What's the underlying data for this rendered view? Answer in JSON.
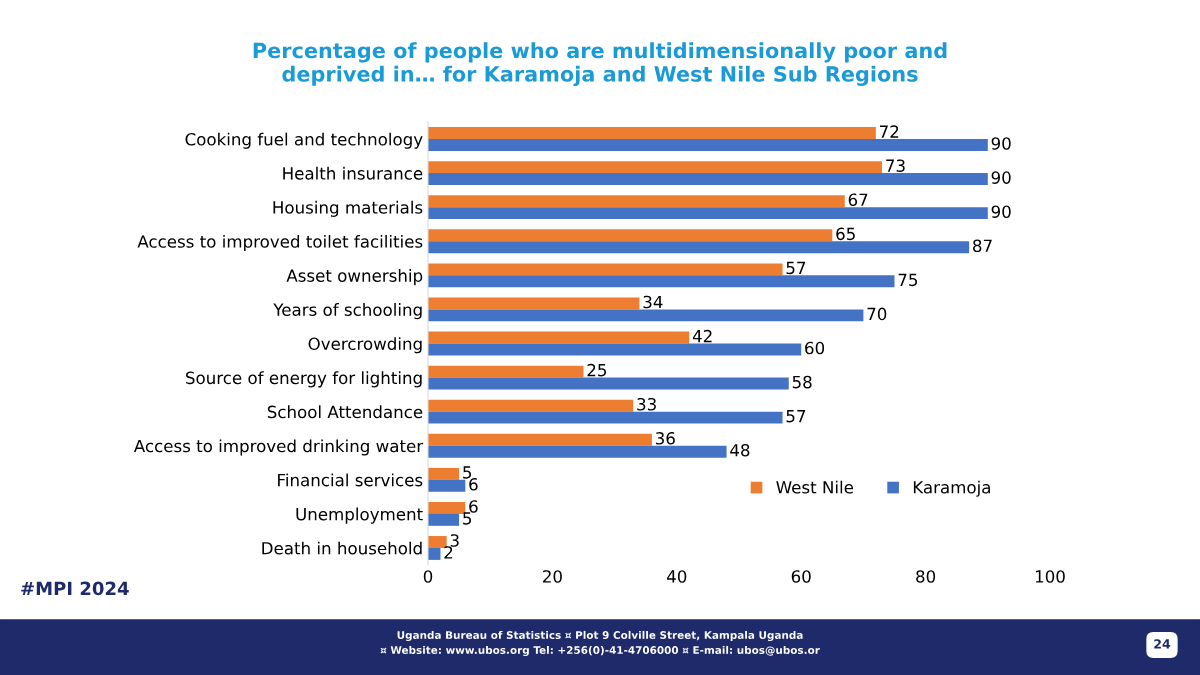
{
  "chart_data": {
    "type": "bar",
    "orientation": "horizontal",
    "title": "Percentage of people who are multidimensionally poor and\ndeprived in… for Karamoja and West Nile Sub Regions",
    "categories": [
      "Cooking fuel and technology",
      "Health insurance",
      "Housing materials",
      "Access to improved toilet facilities",
      "Asset ownership",
      "Years of schooling",
      "Overcrowding",
      "Source of energy for lighting",
      "School Attendance",
      "Access to improved drinking water",
      "Financial services",
      "Unemployment",
      "Death in household"
    ],
    "series": [
      {
        "name": "West Nile",
        "color": "#ed7d31",
        "values": [
          72,
          73,
          67,
          65,
          57,
          34,
          42,
          25,
          33,
          36,
          5,
          6,
          3
        ]
      },
      {
        "name": "Karamoja",
        "color": "#4472c4",
        "values": [
          90,
          90,
          90,
          87,
          75,
          70,
          60,
          58,
          57,
          48,
          6,
          5,
          2
        ]
      }
    ],
    "xlim": [
      0,
      100
    ],
    "xticks": [
      0,
      20,
      40,
      60,
      80,
      100
    ],
    "grid": false,
    "legend": "bottom right",
    "data_labels": true,
    "annotations": [
      "#MPI 2024",
      "Uganda Bureau of Statistics ¤ Plot 9 Colville Street, Kampala Uganda",
      "¤ Website: www.ubos.org Tel: +256(0)-41-4706000 ¤ E-mail: ubos@ubos.or",
      "24"
    ]
  }
}
